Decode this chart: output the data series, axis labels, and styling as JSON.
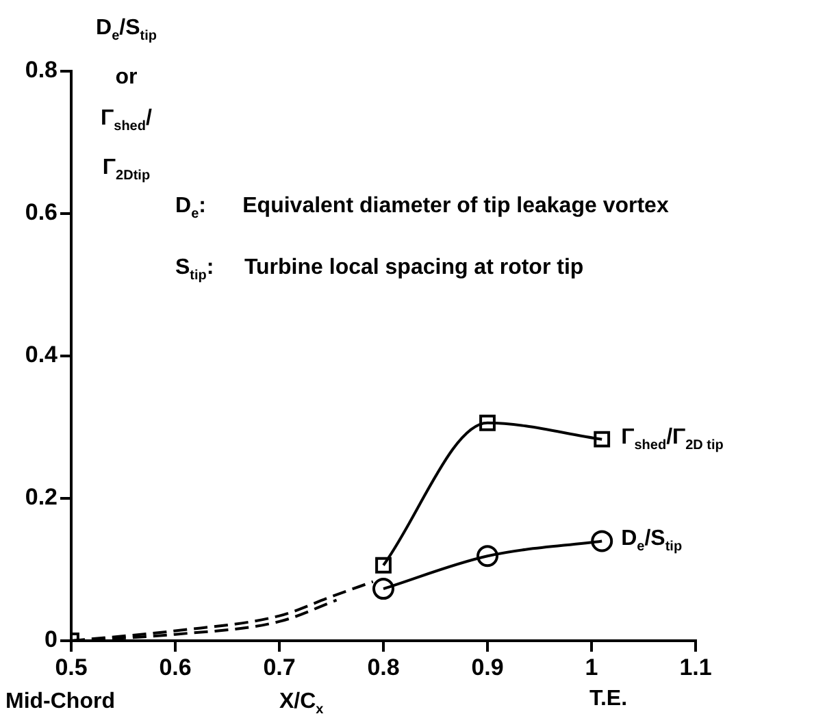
{
  "chart_data": {
    "type": "line",
    "xlabel": "X/C$_{x}$",
    "ylabel": "D$_{e}$/S$_{tip}$ or Γ$_{shed}$/Γ$_{2Dtip}$",
    "xlim": [
      0.5,
      1.1
    ],
    "xticks": [
      0.5,
      0.6,
      0.7,
      0.8,
      0.9,
      1,
      1.1
    ],
    "ylim": [
      0,
      0.8
    ],
    "yticks": [
      0,
      0.2,
      0.4,
      0.6,
      0.8
    ],
    "grid": false,
    "legend": false,
    "series": [
      {
        "name": "Γ$_{shed}$/Γ$_{2D tip}$",
        "color": "#000000",
        "x": [
          0.8,
          0.9,
          1.01
        ],
        "values": [
          0.106,
          0.306,
          0.283
        ],
        "marker": "square",
        "line_style": "solid"
      },
      {
        "name": "D$_{e}$/S$_{tip}$",
        "color": "#000000",
        "x": [
          0.8,
          0.9,
          1.01
        ],
        "values": [
          0.073,
          0.119,
          0.14
        ],
        "marker": "circle",
        "line_style": "solid"
      },
      {
        "color": "#000000",
        "x": [
          0.5,
          0.6,
          0.7,
          0.75,
          0.79
        ],
        "values": [
          0,
          0.014,
          0.035,
          0.062,
          0.083
        ],
        "marker": "none",
        "line_style": "dashed"
      },
      {
        "color": "#000000",
        "x": [
          0.5,
          0.6,
          0.7,
          0.755
        ],
        "values": [
          0,
          0.009,
          0.027,
          0.057
        ],
        "marker": "none",
        "line_style": "dashed"
      },
      {
        "color": "#000000",
        "x": [
          0.5
        ],
        "values": [
          0
        ],
        "marker": "square"
      }
    ],
    "annotations": [
      "D$_{e}$:      Equivalent diameter of tip leakage vortex",
      "S$_{tip}$:     Turbine local spacing at rotor tip",
      "Mid-Chord",
      "T.E."
    ]
  }
}
